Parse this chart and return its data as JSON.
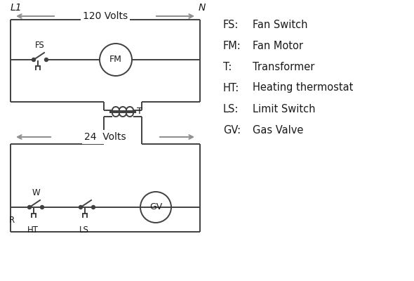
{
  "bg_color": "#ffffff",
  "line_color": "#404040",
  "arrow_color": "#909090",
  "text_color": "#1a1a1a",
  "title_L1": "L1",
  "title_N": "N",
  "volts_120": "120 Volts",
  "volts_24": "24  Volts",
  "legend": [
    [
      "FS:",
      "Fan Switch"
    ],
    [
      "FM:",
      "Fan Motor"
    ],
    [
      "T:",
      "Transformer"
    ],
    [
      "HT:",
      "Heating thermostat"
    ],
    [
      "LS:",
      "Limit Switch"
    ],
    [
      "GV:",
      "Gas Valve"
    ]
  ],
  "figsize": [
    5.9,
    4.0
  ],
  "dpi": 100
}
